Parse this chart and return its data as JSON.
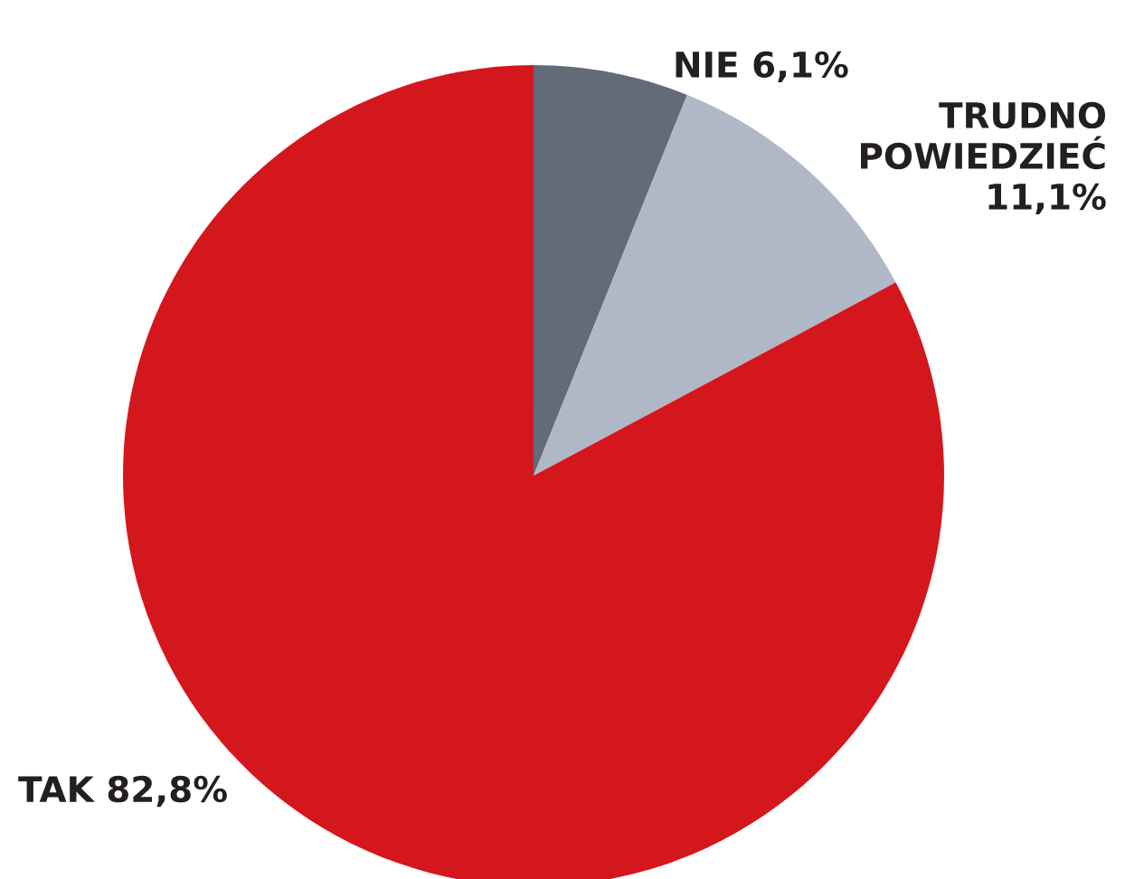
{
  "chart_data": {
    "type": "pie",
    "categories": [
      "NIE",
      "TRUDNO\nPOWIEDZIEĆ",
      "TAK"
    ],
    "values": [
      6.1,
      11.1,
      82.8
    ],
    "value_labels": [
      "6,1%",
      "11,1%",
      "82,8%"
    ],
    "colors": [
      "#636a78",
      "#b0b7c6",
      "#d4171c"
    ]
  }
}
